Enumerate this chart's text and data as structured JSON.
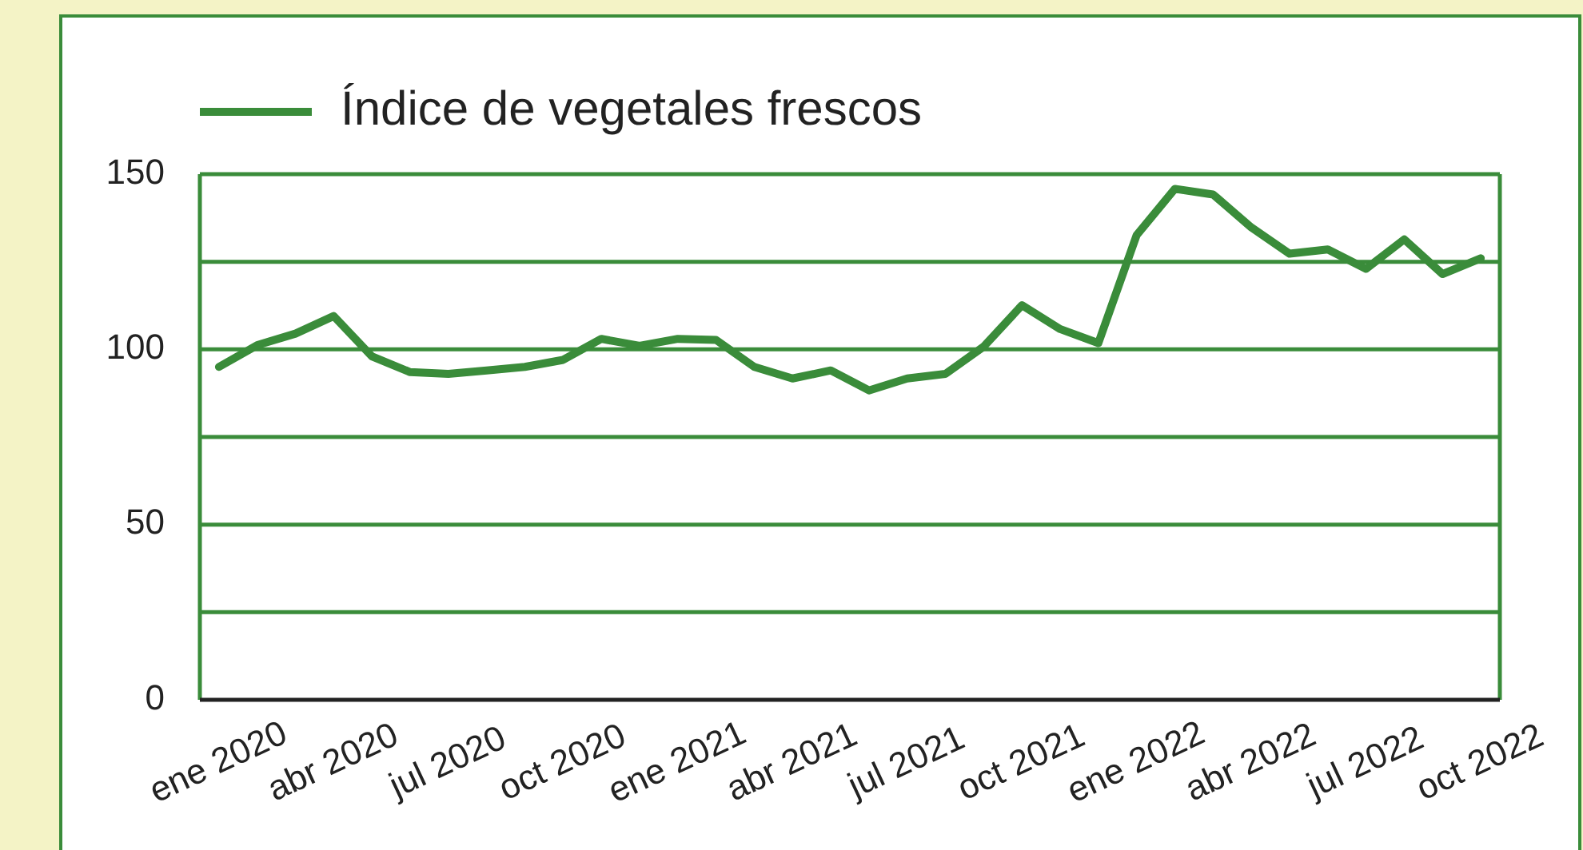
{
  "chart_data": {
    "type": "line",
    "categories": [
      "ene 2020",
      null,
      null,
      "abr 2020",
      null,
      null,
      "jul 2020",
      null,
      null,
      "oct 2020",
      null,
      null,
      "ene 2021",
      null,
      null,
      "abr 2021",
      null,
      null,
      "jul 2021",
      null,
      null,
      "oct 2021",
      null,
      null,
      "ene 2022",
      null,
      null,
      "abr 2022",
      null,
      null,
      "jul 2022",
      null,
      null,
      "oct 2022"
    ],
    "series": [
      {
        "name": "Índice de vegetales frescos",
        "color": "#3a8c3a",
        "values": [
          95,
          101.2,
          104.5,
          109.5,
          98,
          93.5,
          93,
          94,
          95,
          97,
          103,
          101,
          103,
          102.7,
          95,
          91.7,
          94,
          88.3,
          91.7,
          93,
          100.8,
          112.6,
          105.8,
          101.8,
          132.6,
          145.8,
          144.2,
          134.8,
          127.3,
          128.5,
          123,
          131.4,
          121.5,
          126
        ]
      }
    ],
    "ylim": [
      0,
      150
    ],
    "yticks": [
      0,
      {
        "value": 25,
        "label": null
      },
      50,
      {
        "value": 75,
        "label": null
      },
      100,
      {
        "value": 125,
        "label": null
      },
      150
    ],
    "grid": "y",
    "legend": "top left",
    "marker": "none",
    "line_style": "solid"
  }
}
